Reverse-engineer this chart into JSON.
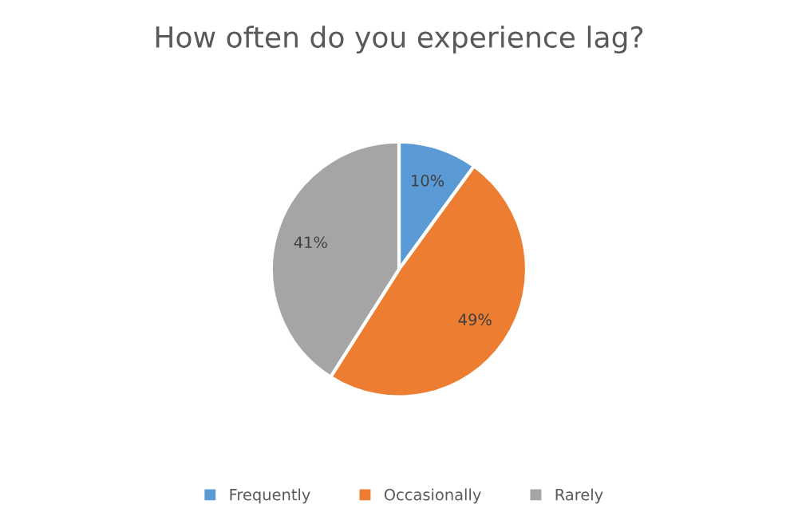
{
  "chart_data": {
    "type": "pie",
    "title": "How often do you experience lag?",
    "categories": [
      "Frequently",
      "Occasionally",
      "Rarely"
    ],
    "values": [
      10,
      49,
      41
    ],
    "colors": [
      "#5b9bd5",
      "#ed7d31",
      "#a5a5a5"
    ],
    "value_labels": [
      "10%",
      "49%",
      "41%"
    ],
    "legend": "bottom"
  }
}
